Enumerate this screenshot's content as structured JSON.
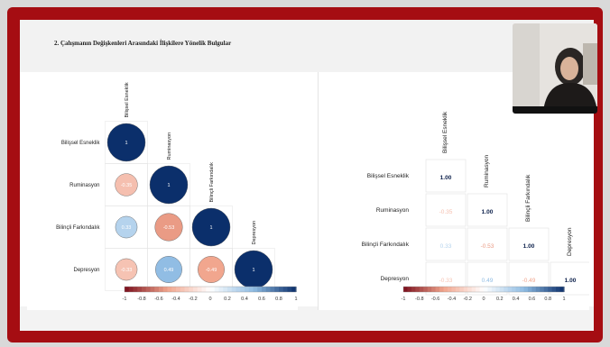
{
  "slide": {
    "title": "2. Çalışmanın Değişkenleri Arasındaki İlişkilere Yönelik Bulgular"
  },
  "colors": {
    "frame": "#a50d12",
    "strong_positive": "#0b2f6b",
    "negative": "#e06a52",
    "positive": "#7ab0de"
  },
  "participant": {
    "video_icon": "presenter-avatar-icon"
  },
  "chart_data": [
    {
      "type": "heatmap",
      "style": "circle",
      "variables": [
        "Bilişsel Esneklik",
        "Ruminasyon",
        "Bilinçli Farkındalık",
        "Depresyon"
      ],
      "matrix": [
        [
          1,
          null,
          null,
          null
        ],
        [
          -0.35,
          1,
          null,
          null
        ],
        [
          0.33,
          -0.53,
          1,
          null
        ],
        [
          -0.33,
          0.49,
          -0.49,
          1
        ]
      ],
      "cell_labels": [
        [
          "1",
          "",
          "",
          ""
        ],
        [
          "-0.35",
          "1",
          "",
          ""
        ],
        [
          "0.33",
          "-0.53",
          "1",
          ""
        ],
        [
          "-0.33",
          "0.49",
          "-0.49",
          "1"
        ]
      ],
      "colorbar_ticks": [
        "-1",
        "-0.8",
        "-0.6",
        "-0.4",
        "-0.2",
        "0",
        "0.2",
        "0.4",
        "0.6",
        "0.8",
        "1"
      ],
      "colorbar_range": [
        -1,
        1
      ]
    },
    {
      "type": "table",
      "variables": [
        "Bilişsel Esneklik",
        "Ruminasyon",
        "Bilinçli Farkındalık",
        "Depresyon"
      ],
      "matrix": [
        [
          1,
          null,
          null,
          null
        ],
        [
          -0.35,
          1,
          null,
          null
        ],
        [
          0.33,
          -0.53,
          1,
          null
        ],
        [
          -0.33,
          0.49,
          -0.49,
          1
        ]
      ],
      "cell_labels": [
        [
          "1.00",
          "",
          "",
          ""
        ],
        [
          "-0.35",
          "1.00",
          "",
          ""
        ],
        [
          "0.33",
          "-0.53",
          "1.00",
          ""
        ],
        [
          "-0.33",
          "0.49",
          "-0.49",
          "1.00"
        ]
      ],
      "colorbar_ticks": [
        "-1",
        "-0.8",
        "-0.6",
        "-0.4",
        "-0.2",
        "0",
        "0.2",
        "0.4",
        "0.6",
        "0.8",
        "1"
      ],
      "colorbar_range": [
        -1,
        1
      ]
    }
  ]
}
